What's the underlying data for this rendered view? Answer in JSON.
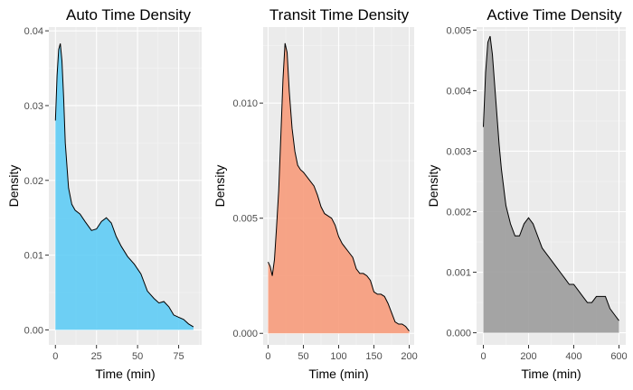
{
  "chart_data": [
    {
      "type": "area",
      "title": "Auto Time Density",
      "xlabel": "Time (min)",
      "ylabel": "Density",
      "xlim": [
        -4,
        89
      ],
      "ylim": [
        -0.002,
        0.0405
      ],
      "xticks": [
        0,
        25,
        50,
        75
      ],
      "yticks": [
        0,
        0.01,
        0.02,
        0.03,
        0.04
      ],
      "ytick_labels": [
        "0.00",
        "0.01",
        "0.02",
        "0.03",
        "0.04"
      ],
      "fill": "#5bcbf5",
      "grid": true,
      "x": [
        0,
        1,
        2,
        3,
        4,
        5,
        6,
        8,
        10,
        12,
        15,
        18,
        22,
        25,
        28,
        31,
        34,
        37,
        40,
        44,
        48,
        52,
        56,
        60,
        63,
        66,
        69,
        72,
        75,
        78,
        81,
        84
      ],
      "y": [
        0.028,
        0.034,
        0.0375,
        0.0383,
        0.036,
        0.031,
        0.025,
        0.019,
        0.0168,
        0.016,
        0.0155,
        0.0145,
        0.0133,
        0.0135,
        0.0145,
        0.015,
        0.0143,
        0.0125,
        0.0112,
        0.0098,
        0.0088,
        0.0075,
        0.0052,
        0.0042,
        0.0036,
        0.0038,
        0.0031,
        0.002,
        0.0017,
        0.0014,
        0.0008,
        0.0004
      ]
    },
    {
      "type": "area",
      "title": "Transit Time Density",
      "xlabel": "Time (min)",
      "ylabel": "Density",
      "xlim": [
        -7,
        207
      ],
      "ylim": [
        -0.0005,
        0.0133
      ],
      "xticks": [
        0,
        50,
        100,
        150,
        200
      ],
      "yticks": [
        0,
        0.005,
        0.01
      ],
      "ytick_labels": [
        "0.000",
        "0.005",
        "0.010"
      ],
      "fill": "#f79877",
      "grid": true,
      "x": [
        0,
        3,
        6,
        9,
        12,
        15,
        18,
        21,
        24,
        27,
        30,
        34,
        38,
        42,
        46,
        50,
        55,
        60,
        65,
        70,
        75,
        80,
        85,
        90,
        95,
        100,
        105,
        110,
        115,
        120,
        125,
        130,
        135,
        140,
        145,
        150,
        155,
        160,
        165,
        170,
        175,
        180,
        185,
        190,
        195,
        200
      ],
      "y": [
        0.0031,
        0.0029,
        0.0025,
        0.0032,
        0.0046,
        0.0062,
        0.0085,
        0.011,
        0.0126,
        0.0122,
        0.0105,
        0.0089,
        0.0079,
        0.0073,
        0.0071,
        0.007,
        0.0068,
        0.0066,
        0.0064,
        0.006,
        0.0055,
        0.0052,
        0.0051,
        0.005,
        0.0047,
        0.0042,
        0.0039,
        0.0037,
        0.0035,
        0.0033,
        0.0028,
        0.0026,
        0.0026,
        0.0025,
        0.0023,
        0.0018,
        0.0017,
        0.0017,
        0.0016,
        0.0013,
        0.0009,
        0.0005,
        0.0004,
        0.0004,
        0.0003,
        0.0001
      ]
    },
    {
      "type": "area",
      "title": "Active Time Density",
      "xlabel": "Time (min)",
      "ylabel": "Density",
      "xlim": [
        -30,
        630
      ],
      "ylim": [
        -0.0002,
        0.00505
      ],
      "xticks": [
        0,
        200,
        400,
        600
      ],
      "yticks": [
        0,
        0.001,
        0.002,
        0.003,
        0.004,
        0.005
      ],
      "ytick_labels": [
        "0.000",
        "0.001",
        "0.002",
        "0.003",
        "0.004",
        "0.005"
      ],
      "fill": "#9a9a9a",
      "grid": true,
      "x": [
        0,
        10,
        20,
        30,
        40,
        50,
        60,
        70,
        80,
        100,
        120,
        140,
        160,
        180,
        200,
        220,
        240,
        260,
        280,
        300,
        320,
        340,
        360,
        380,
        400,
        420,
        440,
        460,
        480,
        500,
        520,
        540,
        560,
        580,
        600
      ],
      "y": [
        0.0034,
        0.0043,
        0.0048,
        0.0049,
        0.0046,
        0.0041,
        0.0036,
        0.0031,
        0.0027,
        0.0021,
        0.0018,
        0.0016,
        0.0016,
        0.0018,
        0.0019,
        0.0018,
        0.0016,
        0.0014,
        0.0013,
        0.0012,
        0.0011,
        0.001,
        0.0009,
        0.0008,
        0.0008,
        0.0007,
        0.0006,
        0.0005,
        0.0005,
        0.0006,
        0.0006,
        0.0006,
        0.0004,
        0.0003,
        0.0002
      ]
    }
  ]
}
